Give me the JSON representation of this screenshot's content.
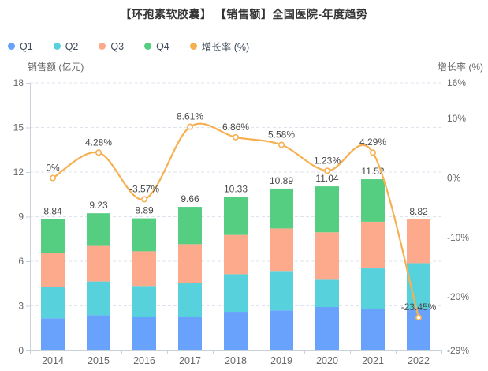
{
  "title": "【环孢素软胶囊】 【销售额】全国医院-年度趋势",
  "legend": [
    {
      "label": "Q1",
      "color": "#68A2FC"
    },
    {
      "label": "Q2",
      "color": "#57D2DD"
    },
    {
      "label": "Q3",
      "color": "#FCA98C"
    },
    {
      "label": "Q4",
      "color": "#55CE81"
    },
    {
      "label": "增长率 (%)",
      "color": "#F7B051"
    }
  ],
  "left_axis": {
    "name": "销售额 (亿元)",
    "ticks": [
      "0",
      "3",
      "6",
      "9",
      "12",
      "15",
      "18"
    ],
    "tick_values": [
      0,
      3,
      6,
      9,
      12,
      15,
      18
    ],
    "min": 0,
    "max": 18
  },
  "right_axis": {
    "name": "增长率 (%)",
    "ticks": [
      "16%",
      "10%",
      "0%",
      "-10%",
      "-20%",
      "-29%"
    ],
    "tick_values": [
      16,
      10,
      0,
      -10,
      -20,
      -29
    ],
    "min": -29,
    "max": 16
  },
  "x_axis": {
    "categories": [
      "2014",
      "2015",
      "2016",
      "2017",
      "2018",
      "2019",
      "2020",
      "2021",
      "2022"
    ]
  },
  "chart_data": [
    {
      "type": "bar",
      "stacked": true,
      "categories": [
        "2014",
        "2015",
        "2016",
        "2017",
        "2018",
        "2019",
        "2020",
        "2021",
        "2022"
      ],
      "series": [
        {
          "name": "Q1",
          "color": "#68A2FC",
          "values": [
            2.16,
            2.37,
            2.25,
            2.25,
            2.6,
            2.69,
            2.92,
            2.78,
            2.81
          ]
        },
        {
          "name": "Q2",
          "color": "#57D2DD",
          "values": [
            2.1,
            2.27,
            2.09,
            2.3,
            2.53,
            2.66,
            1.84,
            2.74,
            3.06
          ]
        },
        {
          "name": "Q3",
          "color": "#FCA98C",
          "values": [
            2.32,
            2.39,
            2.33,
            2.6,
            2.64,
            2.86,
            3.19,
            3.14,
            2.95
          ]
        },
        {
          "name": "Q4",
          "color": "#55CE81",
          "values": [
            2.26,
            2.2,
            2.22,
            2.51,
            2.56,
            2.68,
            3.09,
            2.86,
            0
          ]
        }
      ],
      "totals": [
        "8.84",
        "9.23",
        "8.89",
        "9.66",
        "10.33",
        "10.89",
        "11.04",
        "11.52",
        "8.82"
      ],
      "ylabel": "销售额 (亿元)",
      "ylim": [
        0,
        18
      ],
      "grid": true,
      "legend_position": "top-left"
    },
    {
      "type": "line",
      "name": "增长率 (%)",
      "smooth": true,
      "categories": [
        "2014",
        "2015",
        "2016",
        "2017",
        "2018",
        "2019",
        "2020",
        "2021",
        "2022"
      ],
      "values": [
        0,
        4.28,
        -3.57,
        8.61,
        6.86,
        5.58,
        1.23,
        4.29,
        -23.45
      ],
      "point_labels": [
        "0%",
        "4.28%",
        "-3.57%",
        "8.61%",
        "6.86%",
        "5.58%",
        "1.23%",
        "4.29%",
        "-23.45%"
      ],
      "color": "#F7B051",
      "ylabel": "增长率 (%)",
      "ylim": [
        -29,
        16
      ]
    }
  ],
  "colors": {
    "grid": "#DDE4EE",
    "axis": "#C9D2DB",
    "tick_text": "#666666",
    "value_text": "#4A4A4A",
    "legend_text": "#3C4858",
    "title_text": "#333333",
    "marker_fill": "#FFFFFF"
  }
}
